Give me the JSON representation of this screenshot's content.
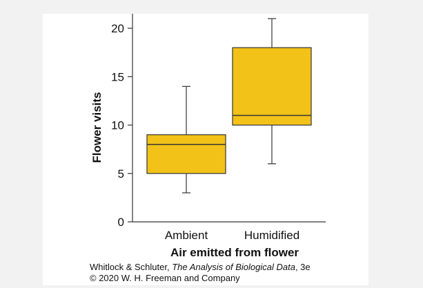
{
  "chart_data": {
    "type": "boxplot",
    "title": "",
    "xlabel": "Air emitted from flower",
    "ylabel": "Flower visits",
    "ylim": [
      0,
      21.5
    ],
    "yticks": [
      0,
      5,
      10,
      15,
      20
    ],
    "categories": [
      "Ambient",
      "Humidified"
    ],
    "boxes": [
      {
        "category": "Ambient",
        "min": 3,
        "q1": 5,
        "median": 8,
        "q3": 9,
        "max": 14
      },
      {
        "category": "Humidified",
        "min": 6,
        "q1": 10,
        "median": 11,
        "q3": 18,
        "max": 21
      }
    ],
    "grid": false,
    "colors": {
      "box_fill": "#f3c218",
      "stroke": "#333333",
      "background": "#ffffff",
      "page": "#f2f2f2"
    }
  },
  "credit": {
    "line1_authors": "Whitlock & Schluter, ",
    "line1_title": "The Analysis of Biological Data",
    "line1_edition": ", 3e",
    "line2": "© 2020 W. H. Freeman and Company"
  }
}
